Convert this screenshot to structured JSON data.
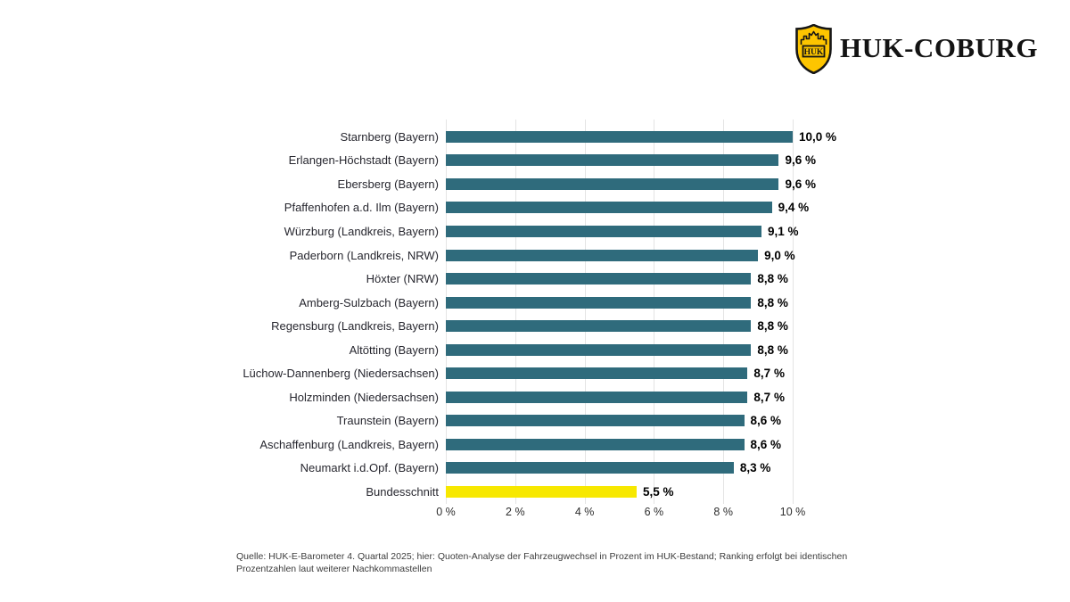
{
  "logo": {
    "text": "HUK-COBURG",
    "shield_text": "HUK",
    "shield_color": "#FDC500"
  },
  "chart_data": {
    "type": "bar",
    "orientation": "horizontal",
    "categories": [
      "Starnberg (Bayern)",
      "Erlangen-Höchstadt (Bayern)",
      "Ebersberg (Bayern)",
      "Pfaffenhofen a.d. Ilm (Bayern)",
      "Würzburg (Landkreis, Bayern)",
      "Paderborn (Landkreis, NRW)",
      "Höxter (NRW)",
      "Amberg-Sulzbach (Bayern)",
      "Regensburg (Landkreis, Bayern)",
      "Altötting (Bayern)",
      "Lüchow-Dannenberg (Niedersachsen)",
      "Holzminden (Niedersachsen)",
      "Traunstein (Bayern)",
      "Aschaffenburg (Landkreis, Bayern)",
      "Neumarkt i.d.Opf. (Bayern)",
      "Bundesschnitt"
    ],
    "values": [
      10.0,
      9.6,
      9.6,
      9.4,
      9.1,
      9.0,
      8.8,
      8.8,
      8.8,
      8.8,
      8.7,
      8.7,
      8.6,
      8.6,
      8.3,
      5.5
    ],
    "value_labels": [
      "10,0 %",
      "9,6 %",
      "9,6 %",
      "9,4 %",
      "9,1 %",
      "9,0 %",
      "8,8 %",
      "8,8 %",
      "8,8 %",
      "8,8 %",
      "8,7 %",
      "8,7 %",
      "8,6 %",
      "8,6 %",
      "8,3 %",
      "5,5 %"
    ],
    "highlight_index": 15,
    "xlim": [
      0,
      10
    ],
    "x_ticks": [
      "0 %",
      "2 %",
      "4 %",
      "6 %",
      "8 %",
      "10 %"
    ],
    "grid": true,
    "legend": false,
    "colors": {
      "bar": "#2F6B7C",
      "highlight": "#F7E800"
    }
  },
  "footer": {
    "line1": "Quelle: HUK-E-Barometer 4. Quartal 2025; hier: Quoten-Analyse der Fahrzeugwechsel in Prozent im HUK-Bestand; Ranking erfolgt bei identischen",
    "line2": "Prozentzahlen laut weiterer Nachkommastellen"
  }
}
